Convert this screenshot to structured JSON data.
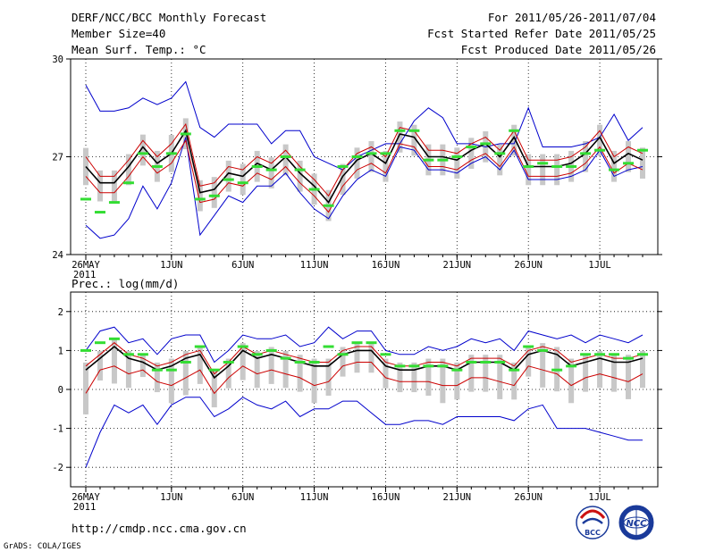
{
  "header": {
    "title": "DERF/NCC/BCC Monthly Forecast",
    "member_size": "Member Size=40",
    "variable": "Mean Surf. Temp.: °C",
    "period": "For 2011/05/26-2011/07/04",
    "started": "Fcst Started Refer Date 2011/05/25",
    "produced": "Fcst Produced Date 2011/05/26"
  },
  "footer": {
    "url": "http://cmdp.ncc.cma.gov.cn",
    "credit": "GrADS: COLA/IGES",
    "logo_bcc": "BCC",
    "logo_ncc": "NCC"
  },
  "colors": {
    "mean": "#000000",
    "spread": "#cc0000",
    "extreme": "#0000cc",
    "box": "#c8c8c8",
    "clim": "#33dd33"
  },
  "chart_data": [
    {
      "type": "line",
      "title": "Mean Surf. Temp.: °C",
      "ylim": [
        24,
        30
      ],
      "yticks": [
        24,
        27,
        30
      ],
      "xlim": [
        0,
        39
      ],
      "xticks": [
        {
          "day": 0,
          "label": "26MAY",
          "sub": "2011"
        },
        {
          "day": 6,
          "label": "1JUN"
        },
        {
          "day": 11,
          "label": "6JUN"
        },
        {
          "day": 16,
          "label": "11JUN"
        },
        {
          "day": 21,
          "label": "16JUN"
        },
        {
          "day": 26,
          "label": "21JUN"
        },
        {
          "day": 31,
          "label": "26JUN"
        },
        {
          "day": 36,
          "label": "1JUL"
        }
      ],
      "series": [
        {
          "name": "max",
          "values": [
            29.2,
            28.4,
            28.4,
            28.5,
            28.8,
            28.6,
            28.8,
            29.3,
            27.9,
            27.6,
            28.0,
            28.0,
            28.0,
            27.4,
            27.8,
            27.8,
            27.0,
            26.8,
            26.6,
            27.0,
            27.2,
            27.4,
            27.4,
            28.1,
            28.5,
            28.2,
            27.4,
            27.4,
            27.3,
            27.4,
            27.4,
            28.5,
            27.3,
            27.3,
            27.3,
            27.4,
            27.6,
            28.3,
            27.5,
            27.9
          ]
        },
        {
          "name": "upper",
          "values": [
            27.0,
            26.4,
            26.4,
            26.9,
            27.5,
            27.0,
            27.4,
            28.0,
            26.1,
            26.2,
            26.7,
            26.6,
            27.0,
            26.8,
            27.2,
            26.7,
            26.3,
            25.8,
            26.6,
            27.1,
            27.3,
            27.0,
            27.9,
            27.8,
            27.2,
            27.2,
            27.1,
            27.4,
            27.6,
            27.2,
            27.8,
            26.9,
            26.9,
            26.9,
            27.0,
            27.3,
            27.8,
            27.0,
            27.3,
            27.1
          ]
        },
        {
          "name": "mean",
          "values": [
            26.7,
            26.2,
            26.2,
            26.7,
            27.3,
            26.8,
            27.1,
            27.8,
            25.9,
            26.0,
            26.5,
            26.4,
            26.8,
            26.6,
            27.0,
            26.5,
            26.1,
            25.6,
            26.4,
            26.9,
            27.1,
            26.8,
            27.7,
            27.6,
            27.0,
            27.0,
            26.9,
            27.2,
            27.4,
            27.0,
            27.6,
            26.7,
            26.7,
            26.7,
            26.8,
            27.1,
            27.6,
            26.8,
            27.1,
            26.9
          ]
        },
        {
          "name": "lower",
          "values": [
            26.4,
            25.9,
            25.9,
            26.4,
            27.0,
            26.5,
            26.8,
            27.5,
            25.6,
            25.7,
            26.2,
            26.1,
            26.5,
            26.3,
            26.7,
            26.2,
            25.8,
            25.3,
            26.1,
            26.6,
            26.8,
            26.5,
            27.4,
            27.3,
            26.7,
            26.7,
            26.6,
            26.9,
            27.1,
            26.7,
            27.3,
            26.4,
            26.4,
            26.4,
            26.5,
            26.8,
            27.3,
            26.5,
            26.8,
            26.6
          ]
        },
        {
          "name": "min",
          "values": [
            24.9,
            24.5,
            24.6,
            25.1,
            26.1,
            25.4,
            26.2,
            27.6,
            24.6,
            25.2,
            25.8,
            25.6,
            26.1,
            26.1,
            26.5,
            25.9,
            25.4,
            25.1,
            25.8,
            26.3,
            26.6,
            26.4,
            27.3,
            27.2,
            26.6,
            26.6,
            26.5,
            26.8,
            27.0,
            26.6,
            27.2,
            26.3,
            26.3,
            26.3,
            26.4,
            26.6,
            27.2,
            26.4,
            26.6,
            26.7
          ]
        },
        {
          "name": "clim",
          "values": [
            25.7,
            25.3,
            25.6,
            26.2,
            27.1,
            26.7,
            27.1,
            27.7,
            25.7,
            25.8,
            26.3,
            26.2,
            26.7,
            26.6,
            27.0,
            26.6,
            26.0,
            25.5,
            26.7,
            27.0,
            27.1,
            27.1,
            27.8,
            27.8,
            26.9,
            26.9,
            27.0,
            27.3,
            27.4,
            27.1,
            27.8,
            26.7,
            26.8,
            26.7,
            26.7,
            27.1,
            27.2,
            26.6,
            26.8,
            27.2
          ]
        }
      ]
    },
    {
      "type": "line",
      "title": "Prec.: log(mm/d)",
      "ylim": [
        -2.5,
        2.5
      ],
      "yticks": [
        -2,
        -1,
        0,
        1,
        2
      ],
      "xlim": [
        0,
        39
      ],
      "xticks": [
        {
          "day": 0,
          "label": "26MAY",
          "sub": "2011"
        },
        {
          "day": 6,
          "label": "1JUN"
        },
        {
          "day": 11,
          "label": "6JUN"
        },
        {
          "day": 16,
          "label": "11JUN"
        },
        {
          "day": 21,
          "label": "16JUN"
        },
        {
          "day": 26,
          "label": "21JUN"
        },
        {
          "day": 31,
          "label": "26JUN"
        },
        {
          "day": 36,
          "label": "1JUL"
        }
      ],
      "series": [
        {
          "name": "max",
          "values": [
            1.0,
            1.5,
            1.6,
            1.2,
            1.3,
            0.9,
            1.3,
            1.4,
            1.4,
            0.7,
            1.0,
            1.4,
            1.3,
            1.3,
            1.4,
            1.1,
            1.2,
            1.6,
            1.3,
            1.5,
            1.5,
            1.0,
            0.9,
            0.9,
            1.1,
            1.0,
            1.1,
            1.3,
            1.2,
            1.3,
            1.0,
            1.5,
            1.4,
            1.3,
            1.4,
            1.2,
            1.4,
            1.3,
            1.2,
            1.4
          ]
        },
        {
          "name": "upper",
          "values": [
            0.6,
            0.9,
            1.2,
            0.9,
            0.8,
            0.6,
            0.7,
            0.9,
            1.0,
            0.4,
            0.7,
            1.1,
            0.9,
            1.0,
            0.9,
            0.8,
            0.7,
            0.7,
            1.0,
            1.1,
            1.1,
            0.7,
            0.6,
            0.6,
            0.7,
            0.7,
            0.6,
            0.8,
            0.8,
            0.8,
            0.6,
            1.0,
            1.1,
            1.0,
            0.7,
            0.8,
            0.9,
            0.8,
            0.8,
            0.9
          ]
        },
        {
          "name": "mean",
          "values": [
            0.5,
            0.8,
            1.1,
            0.8,
            0.7,
            0.5,
            0.6,
            0.8,
            0.9,
            0.3,
            0.6,
            1.0,
            0.8,
            0.9,
            0.8,
            0.7,
            0.6,
            0.6,
            0.9,
            1.0,
            1.0,
            0.6,
            0.5,
            0.5,
            0.6,
            0.6,
            0.5,
            0.7,
            0.7,
            0.7,
            0.5,
            0.9,
            1.0,
            0.9,
            0.6,
            0.7,
            0.8,
            0.7,
            0.7,
            0.8
          ]
        },
        {
          "name": "lower",
          "values": [
            -0.1,
            0.5,
            0.6,
            0.4,
            0.5,
            0.2,
            0.1,
            0.3,
            0.5,
            -0.1,
            0.3,
            0.6,
            0.4,
            0.5,
            0.4,
            0.3,
            0.1,
            0.2,
            0.6,
            0.7,
            0.7,
            0.3,
            0.2,
            0.2,
            0.2,
            0.1,
            0.1,
            0.3,
            0.3,
            0.2,
            0.1,
            0.6,
            0.5,
            0.4,
            0.1,
            0.3,
            0.4,
            0.3,
            0.2,
            0.4
          ]
        },
        {
          "name": "min",
          "values": [
            -2.0,
            -1.1,
            -0.4,
            -0.6,
            -0.4,
            -0.9,
            -0.4,
            -0.2,
            -0.2,
            -0.7,
            -0.5,
            -0.2,
            -0.4,
            -0.5,
            -0.3,
            -0.7,
            -0.5,
            -0.5,
            -0.3,
            -0.3,
            -0.6,
            -0.9,
            -0.9,
            -0.8,
            -0.8,
            -0.9,
            -0.7,
            -0.7,
            -0.7,
            -0.7,
            -0.8,
            -0.5,
            -0.4,
            -1.0,
            -1.0,
            -1.0,
            -1.1,
            -1.2,
            -1.3,
            -1.3
          ]
        },
        {
          "name": "clim",
          "values": [
            1.0,
            1.2,
            1.3,
            0.9,
            0.9,
            0.5,
            0.5,
            0.7,
            1.1,
            0.5,
            0.7,
            1.1,
            0.9,
            1.0,
            0.8,
            0.7,
            0.7,
            1.1,
            0.9,
            1.2,
            1.2,
            0.9,
            0.6,
            0.6,
            0.6,
            0.6,
            0.5,
            0.7,
            0.7,
            0.7,
            0.5,
            1.1,
            1.0,
            0.5,
            0.6,
            0.9,
            0.9,
            0.9,
            0.8,
            0.9
          ]
        }
      ]
    }
  ]
}
